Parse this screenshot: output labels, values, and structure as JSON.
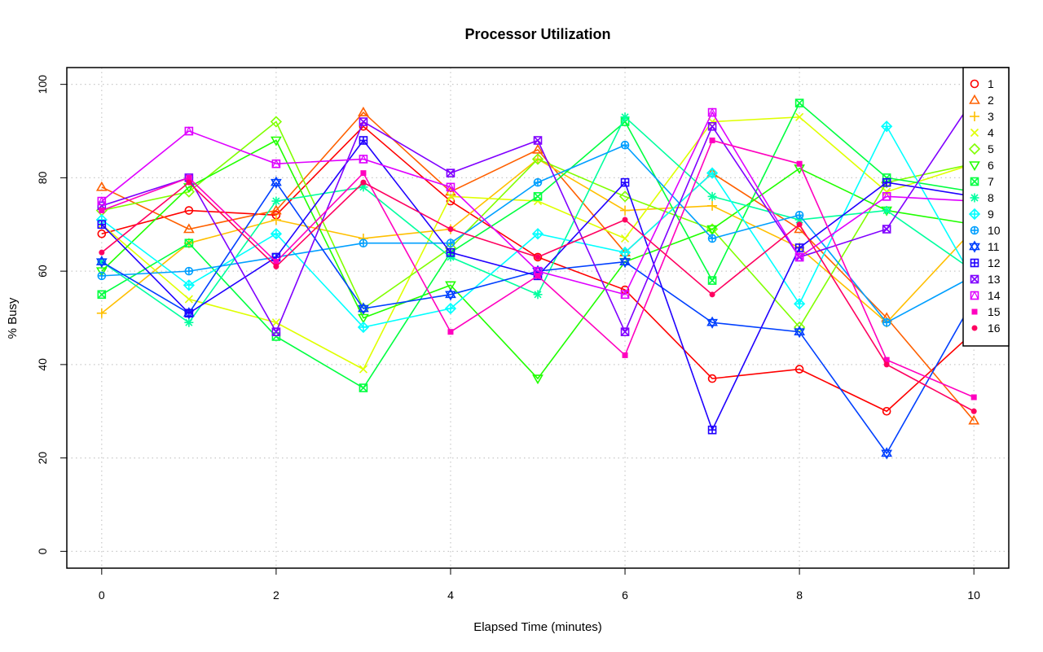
{
  "chart_data": {
    "type": "line",
    "title": "Processor Utilization",
    "xlabel": "Elapsed Time (minutes)",
    "ylabel": "% Busy",
    "xlim": [
      -0.4,
      10.4
    ],
    "ylim": [
      -3.6,
      103.6
    ],
    "xticks": [
      0,
      2,
      4,
      6,
      8,
      10
    ],
    "yticks": [
      0,
      20,
      40,
      60,
      80,
      100
    ],
    "grid": true,
    "legend_position": "top-right",
    "x": [
      0,
      1,
      2,
      3,
      4,
      5,
      6,
      7,
      8,
      9,
      10
    ],
    "series": [
      {
        "name": "1",
        "color": "#FF0000",
        "marker": "circle-open",
        "values": [
          68,
          73,
          72,
          91,
          75,
          63,
          56,
          37,
          39,
          30,
          47
        ]
      },
      {
        "name": "2",
        "color": "#FF6000",
        "marker": "triangle-open",
        "values": [
          78,
          69,
          73,
          94,
          77,
          86,
          64,
          81,
          69,
          50,
          28
        ]
      },
      {
        "name": "3",
        "color": "#FFBF00",
        "marker": "plus",
        "values": [
          51,
          66,
          71,
          67,
          69,
          84,
          73,
          74,
          65,
          49,
          69
        ]
      },
      {
        "name": "4",
        "color": "#DFFF00",
        "marker": "cross",
        "values": [
          70,
          54,
          49,
          39,
          76,
          75,
          67,
          92,
          93,
          77,
          83
        ]
      },
      {
        "name": "5",
        "color": "#80FF00",
        "marker": "diamond-open",
        "values": [
          73,
          77,
          92,
          52,
          65,
          84,
          76,
          69,
          48,
          79,
          83
        ]
      },
      {
        "name": "6",
        "color": "#20FF00",
        "marker": "triangle-down",
        "values": [
          60,
          78,
          88,
          50,
          57,
          37,
          62,
          69,
          82,
          73,
          70
        ]
      },
      {
        "name": "7",
        "color": "#00FF40",
        "marker": "square-cross",
        "values": [
          55,
          66,
          46,
          35,
          64,
          76,
          92,
          58,
          96,
          80,
          77
        ]
      },
      {
        "name": "8",
        "color": "#00FF9F",
        "marker": "asterisk",
        "values": [
          62,
          49,
          75,
          78,
          63,
          55,
          93,
          76,
          71,
          73,
          60
        ]
      },
      {
        "name": "9",
        "color": "#00FFFF",
        "marker": "diamond-plus",
        "values": [
          71,
          57,
          68,
          48,
          52,
          68,
          64,
          81,
          53,
          91,
          58
        ]
      },
      {
        "name": "10",
        "color": "#009FFF",
        "marker": "circle-plus",
        "values": [
          59,
          60,
          63,
          66,
          66,
          79,
          87,
          67,
          72,
          49,
          59
        ]
      },
      {
        "name": "11",
        "color": "#0040FF",
        "marker": "star-of-david",
        "values": [
          62,
          51,
          79,
          52,
          55,
          60,
          62,
          49,
          47,
          21,
          54
        ]
      },
      {
        "name": "12",
        "color": "#2000FF",
        "marker": "square-plus",
        "values": [
          70,
          51,
          63,
          88,
          64,
          59,
          79,
          26,
          65,
          79,
          76
        ]
      },
      {
        "name": "13",
        "color": "#8000FF",
        "marker": "square-cross-box",
        "values": [
          74,
          80,
          47,
          92,
          81,
          88,
          47,
          91,
          63,
          69,
          97
        ]
      },
      {
        "name": "14",
        "color": "#DF00FF",
        "marker": "square-triangle",
        "values": [
          75,
          90,
          83,
          84,
          78,
          60,
          55,
          94,
          63,
          76,
          75
        ]
      },
      {
        "name": "15",
        "color": "#FF00BF",
        "marker": "small-square",
        "values": [
          73,
          80,
          62,
          81,
          47,
          59,
          42,
          88,
          83,
          41,
          33
        ]
      },
      {
        "name": "16",
        "color": "#FF0060",
        "marker": "solid-circle",
        "values": [
          64,
          79,
          61,
          79,
          69,
          63,
          71,
          55,
          70,
          40,
          30
        ]
      }
    ]
  }
}
